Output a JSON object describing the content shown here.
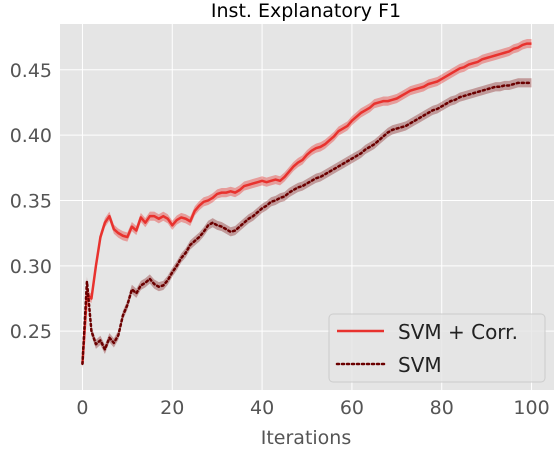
{
  "chart_data": {
    "type": "line",
    "title": "Inst. Explanatory F1",
    "xlabel": "Iterations",
    "ylabel": "",
    "xlim": [
      -5,
      105
    ],
    "ylim": [
      0.205,
      0.485
    ],
    "xticks": [
      0,
      20,
      40,
      60,
      80,
      100
    ],
    "yticks": [
      0.25,
      0.3,
      0.35,
      0.4,
      0.45
    ],
    "ytick_labels": [
      "0.25",
      "0.30",
      "0.35",
      "0.40",
      "0.45"
    ],
    "xtick_labels": [
      "0",
      "20",
      "40",
      "60",
      "80",
      "100"
    ],
    "grid": true,
    "legend_position": "lower-right",
    "series": [
      {
        "name": "SVM + Corr.",
        "style": "solid",
        "color": "#e8322e",
        "band_color": "#e8322e",
        "band_halfwidth": 0.0035,
        "points": [
          [
            0,
            0.225
          ],
          [
            1,
            0.278
          ],
          [
            2,
            0.275
          ],
          [
            3,
            0.3
          ],
          [
            4,
            0.322
          ],
          [
            5,
            0.333
          ],
          [
            6,
            0.338
          ],
          [
            7,
            0.328
          ],
          [
            8,
            0.325
          ],
          [
            9,
            0.323
          ],
          [
            10,
            0.322
          ],
          [
            11,
            0.33
          ],
          [
            12,
            0.327
          ],
          [
            13,
            0.337
          ],
          [
            14,
            0.333
          ],
          [
            15,
            0.338
          ],
          [
            16,
            0.338
          ],
          [
            17,
            0.336
          ],
          [
            18,
            0.338
          ],
          [
            19,
            0.336
          ],
          [
            20,
            0.331
          ],
          [
            21,
            0.335
          ],
          [
            22,
            0.337
          ],
          [
            23,
            0.336
          ],
          [
            24,
            0.334
          ],
          [
            25,
            0.342
          ],
          [
            26,
            0.346
          ],
          [
            27,
            0.349
          ],
          [
            28,
            0.35
          ],
          [
            29,
            0.352
          ],
          [
            30,
            0.355
          ],
          [
            31,
            0.356
          ],
          [
            32,
            0.356
          ],
          [
            33,
            0.357
          ],
          [
            34,
            0.356
          ],
          [
            35,
            0.358
          ],
          [
            36,
            0.361
          ],
          [
            37,
            0.362
          ],
          [
            38,
            0.363
          ],
          [
            39,
            0.364
          ],
          [
            40,
            0.365
          ],
          [
            41,
            0.364
          ],
          [
            42,
            0.365
          ],
          [
            43,
            0.366
          ],
          [
            44,
            0.365
          ],
          [
            45,
            0.368
          ],
          [
            46,
            0.372
          ],
          [
            47,
            0.376
          ],
          [
            48,
            0.379
          ],
          [
            49,
            0.381
          ],
          [
            50,
            0.385
          ],
          [
            51,
            0.388
          ],
          [
            52,
            0.39
          ],
          [
            53,
            0.391
          ],
          [
            54,
            0.393
          ],
          [
            55,
            0.396
          ],
          [
            56,
            0.399
          ],
          [
            57,
            0.403
          ],
          [
            58,
            0.405
          ],
          [
            59,
            0.407
          ],
          [
            60,
            0.411
          ],
          [
            61,
            0.414
          ],
          [
            62,
            0.417
          ],
          [
            63,
            0.419
          ],
          [
            64,
            0.421
          ],
          [
            65,
            0.424
          ],
          [
            66,
            0.425
          ],
          [
            67,
            0.426
          ],
          [
            68,
            0.426
          ],
          [
            69,
            0.427
          ],
          [
            70,
            0.428
          ],
          [
            71,
            0.43
          ],
          [
            72,
            0.432
          ],
          [
            73,
            0.434
          ],
          [
            74,
            0.435
          ],
          [
            75,
            0.436
          ],
          [
            76,
            0.437
          ],
          [
            77,
            0.439
          ],
          [
            78,
            0.44
          ],
          [
            79,
            0.441
          ],
          [
            80,
            0.443
          ],
          [
            81,
            0.445
          ],
          [
            82,
            0.447
          ],
          [
            83,
            0.449
          ],
          [
            84,
            0.451
          ],
          [
            85,
            0.452
          ],
          [
            86,
            0.454
          ],
          [
            87,
            0.455
          ],
          [
            88,
            0.456
          ],
          [
            89,
            0.458
          ],
          [
            90,
            0.459
          ],
          [
            91,
            0.46
          ],
          [
            92,
            0.461
          ],
          [
            93,
            0.462
          ],
          [
            94,
            0.463
          ],
          [
            95,
            0.464
          ],
          [
            96,
            0.466
          ],
          [
            97,
            0.467
          ],
          [
            98,
            0.469
          ],
          [
            99,
            0.47
          ],
          [
            100,
            0.47
          ]
        ]
      },
      {
        "name": "SVM",
        "style": "dotted",
        "color": "#6b0000",
        "band_color": "#8c2a2a",
        "band_halfwidth": 0.0035,
        "points": [
          [
            0,
            0.225
          ],
          [
            1,
            0.288
          ],
          [
            2,
            0.25
          ],
          [
            3,
            0.24
          ],
          [
            4,
            0.243
          ],
          [
            5,
            0.236
          ],
          [
            6,
            0.245
          ],
          [
            7,
            0.241
          ],
          [
            8,
            0.247
          ],
          [
            9,
            0.262
          ],
          [
            10,
            0.27
          ],
          [
            11,
            0.282
          ],
          [
            12,
            0.279
          ],
          [
            13,
            0.285
          ],
          [
            14,
            0.287
          ],
          [
            15,
            0.29
          ],
          [
            16,
            0.286
          ],
          [
            17,
            0.284
          ],
          [
            18,
            0.285
          ],
          [
            19,
            0.289
          ],
          [
            20,
            0.295
          ],
          [
            21,
            0.3
          ],
          [
            22,
            0.306
          ],
          [
            23,
            0.31
          ],
          [
            24,
            0.316
          ],
          [
            25,
            0.319
          ],
          [
            26,
            0.322
          ],
          [
            27,
            0.326
          ],
          [
            28,
            0.331
          ],
          [
            29,
            0.333
          ],
          [
            30,
            0.331
          ],
          [
            31,
            0.33
          ],
          [
            32,
            0.328
          ],
          [
            33,
            0.326
          ],
          [
            34,
            0.327
          ],
          [
            35,
            0.33
          ],
          [
            36,
            0.333
          ],
          [
            37,
            0.336
          ],
          [
            38,
            0.338
          ],
          [
            39,
            0.341
          ],
          [
            40,
            0.344
          ],
          [
            41,
            0.346
          ],
          [
            42,
            0.349
          ],
          [
            43,
            0.35
          ],
          [
            44,
            0.352
          ],
          [
            45,
            0.353
          ],
          [
            46,
            0.356
          ],
          [
            47,
            0.358
          ],
          [
            48,
            0.36
          ],
          [
            49,
            0.361
          ],
          [
            50,
            0.363
          ],
          [
            51,
            0.365
          ],
          [
            52,
            0.367
          ],
          [
            53,
            0.368
          ],
          [
            54,
            0.37
          ],
          [
            55,
            0.372
          ],
          [
            56,
            0.374
          ],
          [
            57,
            0.376
          ],
          [
            58,
            0.378
          ],
          [
            59,
            0.38
          ],
          [
            60,
            0.382
          ],
          [
            61,
            0.384
          ],
          [
            62,
            0.386
          ],
          [
            63,
            0.389
          ],
          [
            64,
            0.391
          ],
          [
            65,
            0.393
          ],
          [
            66,
            0.396
          ],
          [
            67,
            0.399
          ],
          [
            68,
            0.402
          ],
          [
            69,
            0.404
          ],
          [
            70,
            0.405
          ],
          [
            71,
            0.406
          ],
          [
            72,
            0.407
          ],
          [
            73,
            0.409
          ],
          [
            74,
            0.411
          ],
          [
            75,
            0.413
          ],
          [
            76,
            0.415
          ],
          [
            77,
            0.417
          ],
          [
            78,
            0.419
          ],
          [
            79,
            0.42
          ],
          [
            80,
            0.422
          ],
          [
            81,
            0.424
          ],
          [
            82,
            0.426
          ],
          [
            83,
            0.427
          ],
          [
            84,
            0.429
          ],
          [
            85,
            0.43
          ],
          [
            86,
            0.431
          ],
          [
            87,
            0.432
          ],
          [
            88,
            0.433
          ],
          [
            89,
            0.434
          ],
          [
            90,
            0.435
          ],
          [
            91,
            0.436
          ],
          [
            92,
            0.437
          ],
          [
            93,
            0.437
          ],
          [
            94,
            0.438
          ],
          [
            95,
            0.438
          ],
          [
            96,
            0.439
          ],
          [
            97,
            0.44
          ],
          [
            98,
            0.44
          ],
          [
            99,
            0.44
          ],
          [
            100,
            0.44
          ]
        ]
      }
    ]
  }
}
